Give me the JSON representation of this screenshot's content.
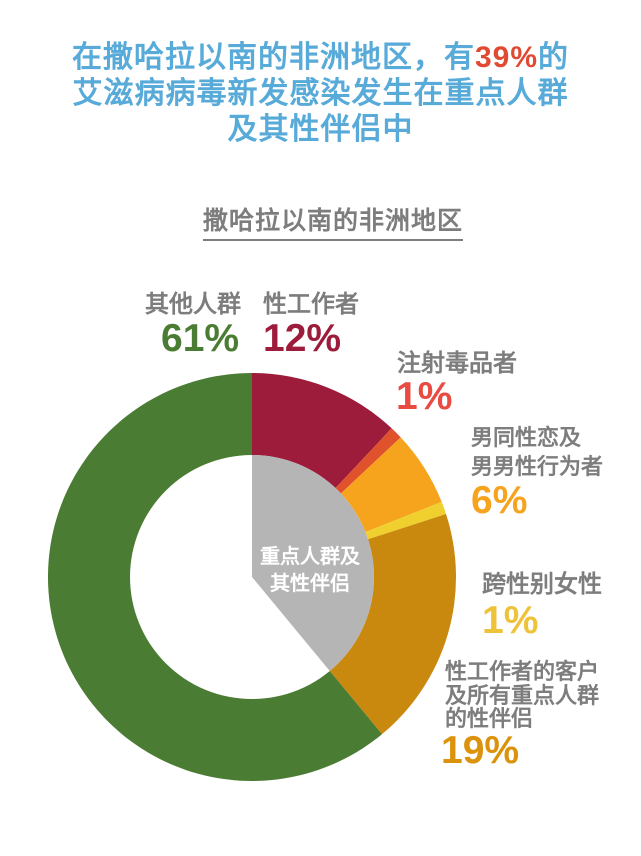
{
  "page": {
    "title": {
      "line1_pre": "在撒哈拉以南的非洲地区，有",
      "line1_highlight": "39%",
      "line1_post": "的",
      "line2": "艾滋病病毒新发感染发生在重点人群",
      "line3": "及其性伴侣中",
      "color": "#58abd9",
      "highlight_color": "#e04a33"
    }
  },
  "chart_data": {
    "type": "pie",
    "donut": true,
    "title": "撒哈拉以南的非洲地区",
    "unit": "%",
    "start_angle_deg": 0,
    "direction": "clockwise",
    "segments": [
      {
        "id": "sex-workers",
        "label": "性工作者",
        "value": 12,
        "color": "#9d1c3b"
      },
      {
        "id": "people-who-inject-drugs",
        "label": "注射毒品者",
        "value": 1,
        "color": "#e0522b"
      },
      {
        "id": "gay-men-and-msm",
        "label": "男同性恋及男男性行为者",
        "value": 6,
        "color": "#f6a31d"
      },
      {
        "id": "transgender-women",
        "label": "跨性别女性",
        "value": 1,
        "color": "#f0d02e"
      },
      {
        "id": "clients-and-partners",
        "label": "性工作者的客户及所有重点人群的性伴侣",
        "value": 19,
        "color": "#c8890e"
      },
      {
        "id": "other-populations",
        "label": "其他人群",
        "value": 61,
        "color": "#4b7c33"
      }
    ],
    "center_overlay": {
      "label": "重点人群及\n其性伴侣",
      "value": 39,
      "color": "#b5b5b5",
      "text_color": "#ffffff"
    }
  },
  "labels": {
    "other": {
      "name": "其他人群",
      "value": "61%"
    },
    "sw": {
      "name": "性工作者",
      "value": "12%"
    },
    "pwid": {
      "name": "注射毒品者",
      "value": "1%"
    },
    "msm": {
      "name": "男同性恋及\n男男性行为者",
      "value": "6%"
    },
    "tg": {
      "name": "跨性别女性",
      "value": "1%"
    },
    "clients": {
      "name": "性工作者的客户\n及所有重点人群\n的性伴侣",
      "value": "19%"
    }
  }
}
